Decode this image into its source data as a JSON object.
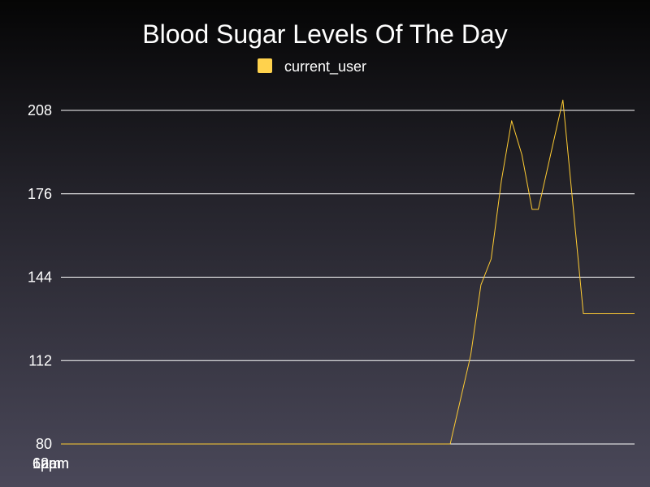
{
  "chart_data": {
    "type": "line",
    "title": "Blood Sugar Levels Of The Day",
    "xlabel": "",
    "ylabel": "",
    "ylim": [
      80,
      208
    ],
    "yticks": [
      80,
      112,
      144,
      176,
      208
    ],
    "xtick_labels": [
      "12am",
      "6am",
      "12pm",
      "6pm"
    ],
    "grid": true,
    "legend_position": "top-center",
    "line_color": "#ffcc33",
    "legend_color": "#ffd24d",
    "series": [
      {
        "name": "current_user",
        "values": [
          [
            0,
            80
          ],
          [
            0.5,
            80
          ],
          [
            1,
            80
          ],
          [
            1.5,
            80
          ],
          [
            2,
            80
          ],
          [
            2.5,
            80
          ],
          [
            3,
            80
          ],
          [
            3.5,
            80
          ],
          [
            4,
            80
          ],
          [
            4.5,
            80
          ],
          [
            5,
            80
          ],
          [
            5.5,
            80
          ],
          [
            6,
            80
          ],
          [
            6.5,
            80
          ],
          [
            7,
            80
          ],
          [
            7.5,
            80
          ],
          [
            8,
            80
          ],
          [
            8.5,
            80
          ],
          [
            9,
            80
          ],
          [
            9.5,
            80
          ],
          [
            10,
            80
          ],
          [
            10.5,
            80
          ],
          [
            11,
            80
          ],
          [
            11.5,
            80
          ],
          [
            12,
            80
          ],
          [
            12.5,
            80
          ],
          [
            13,
            80
          ],
          [
            13.5,
            80
          ],
          [
            14,
            80
          ],
          [
            14.5,
            80
          ],
          [
            15,
            80
          ],
          [
            15.5,
            80
          ],
          [
            16,
            80
          ],
          [
            16.5,
            80
          ],
          [
            17,
            80
          ],
          [
            17.5,
            80
          ],
          [
            18,
            80
          ],
          [
            18.5,
            80
          ],
          [
            19,
            80
          ],
          [
            20,
            114
          ],
          [
            20.5,
            141
          ],
          [
            21,
            151
          ],
          [
            21.5,
            181
          ],
          [
            22,
            204
          ],
          [
            22.5,
            191
          ],
          [
            23,
            170
          ],
          [
            23.3,
            170
          ],
          [
            24.5,
            212
          ],
          [
            25,
            171
          ],
          [
            25.5,
            130
          ],
          [
            26,
            130
          ],
          [
            26.5,
            130
          ],
          [
            27,
            130
          ],
          [
            27.5,
            130
          ],
          [
            28,
            130
          ]
        ]
      }
    ]
  }
}
